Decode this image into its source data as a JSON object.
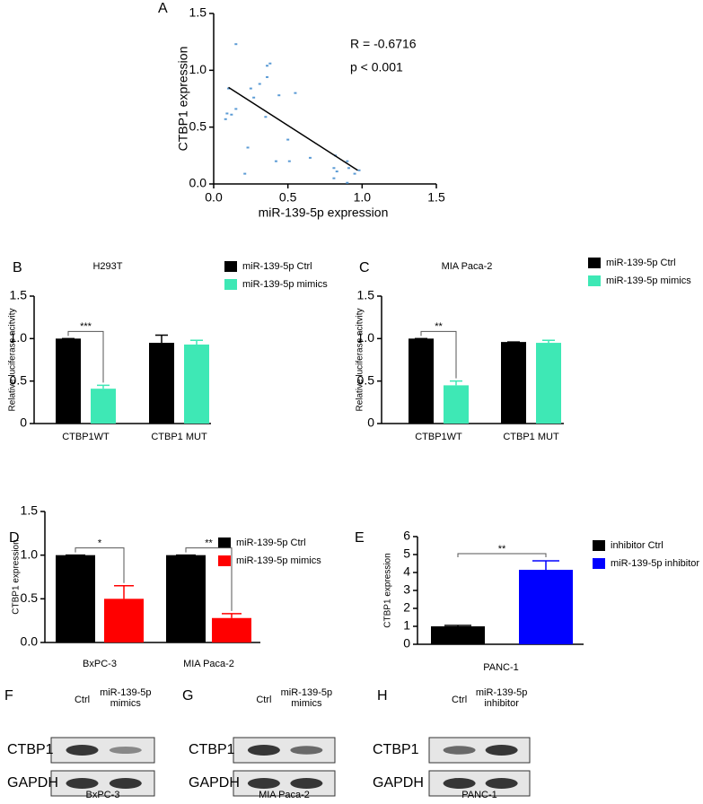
{
  "chart_data": [
    {
      "type": "scatter",
      "panel": "A",
      "xlabel": "miR-139-5p expression",
      "ylabel": "CTBP1 expression",
      "annotations": [
        "R = -0.6716",
        "p < 0.001"
      ],
      "color": "#5b9bd5",
      "x": [
        0.15,
        0.1,
        0.09,
        0.15,
        0.12,
        0.08,
        0.25,
        0.31,
        0.36,
        0.38,
        0.36,
        0.27,
        0.23,
        0.21,
        0.35,
        0.44,
        0.55,
        0.5,
        0.42,
        0.51,
        0.65,
        0.82,
        0.81,
        0.83,
        0.81,
        0.91,
        0.98,
        0.9,
        0.95,
        0.9
      ],
      "y": [
        1.23,
        0.84,
        0.62,
        0.66,
        0.61,
        0.57,
        0.84,
        0.88,
        1.04,
        1.06,
        0.94,
        0.76,
        0.32,
        0.09,
        0.59,
        0.78,
        0.8,
        0.39,
        0.2,
        0.2,
        0.23,
        0.25,
        0.14,
        0.11,
        0.05,
        0.14,
        0.12,
        0.01,
        0.09,
        0.2
      ],
      "trend_line": {
        "x": [
          0.1,
          0.97
        ],
        "y": [
          0.85,
          0.12
        ]
      },
      "xlim": [
        0,
        1.5
      ],
      "ylim": [
        0,
        1.5
      ],
      "xticks": [
        {
          "value": 0,
          "label": "0.0"
        },
        {
          "value": 0.5,
          "label": "0.5"
        },
        {
          "value": 1,
          "label": "1.0"
        },
        {
          "value": 1.5,
          "label": "1.5"
        }
      ],
      "yticks": [
        {
          "value": 0,
          "label": "0.0"
        },
        {
          "value": 0.5,
          "label": "0.5"
        },
        {
          "value": 1,
          "label": "1.0"
        },
        {
          "value": 1.5,
          "label": "1.5"
        }
      ]
    },
    {
      "type": "bar",
      "panel": "B",
      "title": "H293T",
      "ylabel": "Relative luciferase acitvity",
      "categories": [
        "CTBP1WT",
        "CTBP1 MUT"
      ],
      "series": [
        {
          "name": "miR-139-5p Ctrl",
          "color": "#000000",
          "values": [
            1.0,
            0.95
          ],
          "errors": [
            0,
            0.09
          ]
        },
        {
          "name": "miR-139-5p mimics",
          "color": "#3ee8b5",
          "values": [
            0.41,
            0.93
          ],
          "errors": [
            0.04,
            0.05
          ]
        }
      ],
      "significance_labels": [
        "***"
      ],
      "ylim": [
        0,
        1.5
      ],
      "yticks": [
        0,
        {
          "value": 0.5,
          "label": "0.5"
        },
        {
          "value": 1,
          "label": "1.0"
        },
        {
          "value": 1.5,
          "label": "1.5"
        }
      ]
    },
    {
      "type": "bar",
      "panel": "C",
      "title": "MIA Paca-2",
      "ylabel": "Relative luciferase acitvity",
      "categories": [
        "CTBP1WT",
        "CTBP1 MUT"
      ],
      "series": [
        {
          "name": "miR-139-5p Ctrl",
          "color": "#000000",
          "values": [
            1.0,
            0.96
          ],
          "errors": [
            0,
            0
          ]
        },
        {
          "name": "miR-139-5p mimics",
          "color": "#3ee8b5",
          "values": [
            0.45,
            0.95
          ],
          "errors": [
            0.05,
            0.03
          ]
        }
      ],
      "significance_labels": [
        "**"
      ],
      "ylim": [
        0,
        1.5
      ],
      "yticks": [
        0,
        {
          "value": 0.5,
          "label": "0.5"
        },
        {
          "value": 1,
          "label": "1.0"
        },
        {
          "value": 1.5,
          "label": "1.5"
        }
      ]
    },
    {
      "type": "bar",
      "panel": "D",
      "ylabel": "CTBP1 expression",
      "categories": [
        "BxPC-3",
        "MIA Paca-2"
      ],
      "series": [
        {
          "name": "miR-139-5p Ctrl",
          "color": "#000000",
          "values": [
            1.0,
            1.0
          ],
          "errors": [
            0,
            0
          ]
        },
        {
          "name": "miR-139-5p mimics",
          "color": "#ff0000",
          "values": [
            0.5,
            0.28
          ],
          "errors": [
            0.15,
            0.05
          ]
        }
      ],
      "significance_labels": [
        "*",
        "**"
      ],
      "ylim": [
        0,
        1.5
      ],
      "yticks": [
        {
          "value": 0,
          "label": "0.0"
        },
        {
          "value": 0.5,
          "label": "0.5"
        },
        {
          "value": 1,
          "label": "1.0"
        },
        {
          "value": 1.5,
          "label": "1.5"
        }
      ]
    },
    {
      "type": "bar",
      "panel": "E",
      "ylabel": "CTBP1 expression",
      "xlabel": "PANC-1",
      "categories": [
        null
      ],
      "series": [
        {
          "name": "inhibitor Ctrl",
          "color": "#000000",
          "values": [
            1.0
          ],
          "errors": [
            0.05
          ]
        },
        {
          "name": "miR-139-5p inhibitor",
          "color": "#0000ff",
          "values": [
            4.15
          ],
          "errors": [
            0.5
          ]
        }
      ],
      "significance_labels": [
        "**"
      ],
      "ylim": [
        0,
        6
      ],
      "yticks": [
        0,
        1,
        2,
        3,
        4,
        5,
        6
      ]
    }
  ],
  "blots": [
    {
      "panel": "F",
      "columns": [
        "Ctrl",
        "miR-139-5p mimics"
      ],
      "rows": [
        "CTBP1",
        "GAPDH"
      ],
      "cell_line": "BxPC-3"
    },
    {
      "panel": "G",
      "columns": [
        "Ctrl",
        "miR-139-5p mimics"
      ],
      "rows": [
        "CTBP1",
        "GAPDH"
      ],
      "cell_line": "MIA Paca-2"
    },
    {
      "panel": "H",
      "columns": [
        "Ctrl",
        "miR-139-5p inhibitor"
      ],
      "rows": [
        "CTBP1",
        "GAPDH"
      ],
      "cell_line": "PANC-1"
    }
  ]
}
